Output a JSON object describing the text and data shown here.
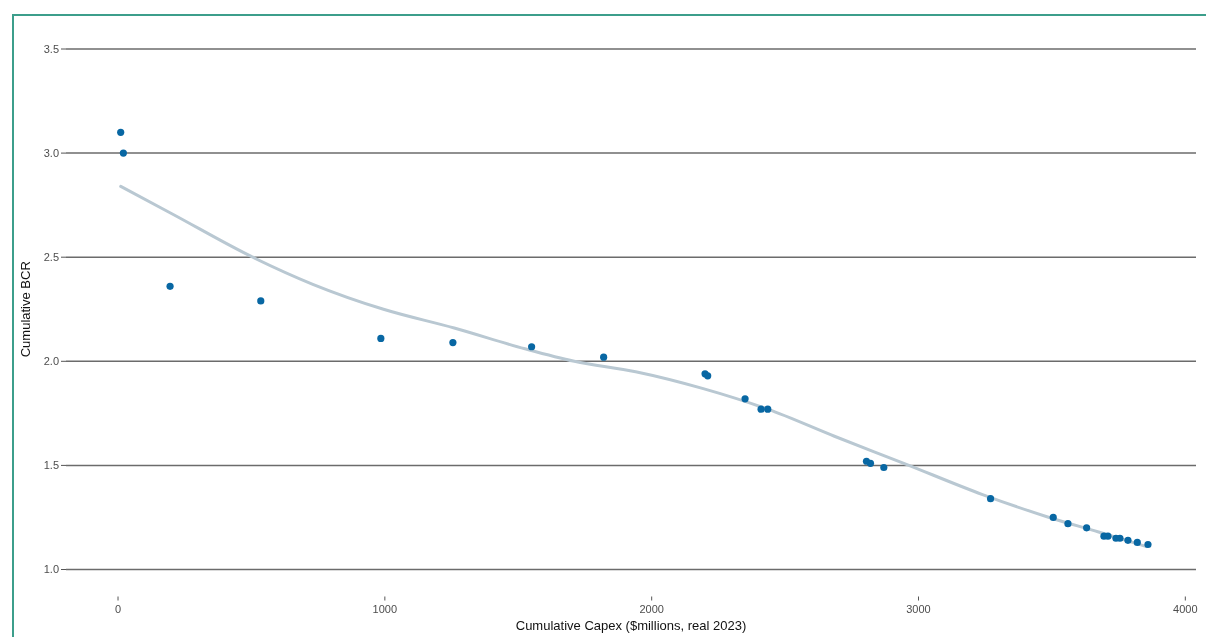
{
  "chart_data": {
    "type": "scatter",
    "xlabel": "Cumulative Capex ($millions, real 2023)",
    "ylabel": "Cumulative BCR",
    "series": [
      {
        "type": "scatter",
        "color": "#0867a3",
        "marker": "circle",
        "x": [
          10,
          20,
          195,
          535,
          985,
          1255,
          1550,
          1820,
          2200,
          2210,
          2350,
          2410,
          2435,
          2805,
          2820,
          2870,
          3270,
          3505,
          3560,
          3630,
          3695,
          3710,
          3740,
          3755,
          3785,
          3820,
          3860
        ],
        "values": [
          3.1,
          3.0,
          2.36,
          2.29,
          2.11,
          2.09,
          2.07,
          2.02,
          1.94,
          1.93,
          1.82,
          1.77,
          1.77,
          1.52,
          1.51,
          1.49,
          1.34,
          1.25,
          1.22,
          1.2,
          1.16,
          1.16,
          1.15,
          1.15,
          1.14,
          1.13,
          1.12
        ]
      },
      {
        "type": "line",
        "color": "#b9c8d2",
        "x": [
          10,
          200,
          505,
          730,
          995,
          1260,
          1525,
          1710,
          1940,
          2190,
          2435,
          2685,
          2945,
          3240,
          3490,
          3675,
          3855
        ],
        "values": [
          2.84,
          2.71,
          2.5,
          2.37,
          2.25,
          2.16,
          2.06,
          2.0,
          1.95,
          1.87,
          1.77,
          1.64,
          1.51,
          1.36,
          1.25,
          1.18,
          1.11
        ]
      }
    ],
    "xlim": [
      -195,
      4040
    ],
    "xticks": [
      0,
      1000,
      2000,
      3000,
      4000
    ],
    "ylim": [
      1,
      3.5
    ],
    "yticks": [
      {
        "value": 1,
        "label": "1.0"
      },
      1.5,
      {
        "value": 2,
        "label": "2.0"
      },
      2.5,
      {
        "value": 3,
        "label": "3.0"
      },
      3.5
    ],
    "grid": "y"
  }
}
